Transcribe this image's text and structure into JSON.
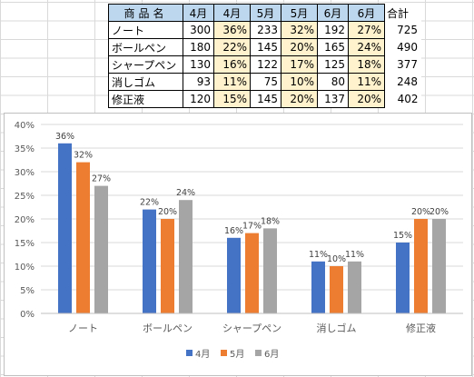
{
  "table": {
    "headers": [
      "商品名",
      "4月",
      "4月",
      "5月",
      "5月",
      "6月",
      "6月",
      "合計"
    ],
    "rows": [
      [
        "ノート",
        "300",
        "36%",
        "233",
        "32%",
        "192",
        "27%",
        "725"
      ],
      [
        "ボールペン",
        "180",
        "22%",
        "145",
        "20%",
        "165",
        "24%",
        "490"
      ],
      [
        "シャープペン",
        "130",
        "16%",
        "122",
        "17%",
        "125",
        "18%",
        "377"
      ],
      [
        "消しゴム",
        "93",
        "11%",
        "75",
        "10%",
        "80",
        "11%",
        "248"
      ],
      [
        "修正液",
        "120",
        "15%",
        "145",
        "20%",
        "137",
        "20%",
        "402"
      ]
    ]
  },
  "chart_data": {
    "type": "bar",
    "categories": [
      "ノート",
      "ボールペン",
      "シャープペン",
      "消しゴム",
      "修正液"
    ],
    "series": [
      {
        "name": "4月",
        "color": "#4472c4",
        "values": [
          36,
          22,
          16,
          11,
          15
        ],
        "labels": [
          "36%",
          "22%",
          "16%",
          "11%",
          "15%"
        ]
      },
      {
        "name": "5月",
        "color": "#ed7d31",
        "values": [
          32,
          20,
          17,
          10,
          20
        ],
        "labels": [
          "32%",
          "20%",
          "17%",
          "10%",
          "20%"
        ]
      },
      {
        "name": "6月",
        "color": "#a5a5a5",
        "values": [
          27,
          24,
          18,
          11,
          20
        ],
        "labels": [
          "27%",
          "24%",
          "18%",
          "11%",
          "20%"
        ]
      }
    ],
    "ylim": [
      0,
      40
    ],
    "yticks": [
      "0%",
      "5%",
      "10%",
      "15%",
      "20%",
      "25%",
      "30%",
      "35%",
      "40%"
    ],
    "grid": true,
    "legend": "bottom"
  }
}
